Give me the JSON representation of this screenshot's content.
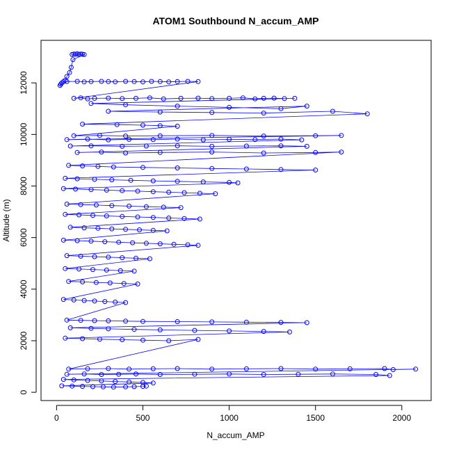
{
  "chart_data": {
    "type": "scatter",
    "title": "ATOM1 Southbound N_accum_AMP",
    "xlabel": "N_accum_AMP",
    "ylabel": "Altitude (m)",
    "xlim": [
      -90,
      2170
    ],
    "ylim": [
      -320,
      13650
    ],
    "x_ticks": [
      0,
      500,
      1000,
      1500,
      2000
    ],
    "y_ticks": [
      0,
      2000,
      4000,
      6000,
      8000,
      10000,
      12000
    ],
    "grid": false,
    "legend": "none",
    "marker": "open-circle",
    "connect_points": true,
    "series_color": "#0000ff",
    "series": [
      {
        "x": [
          90,
          100,
          110,
          120,
          130,
          140,
          150,
          160,
          95,
          85,
          75,
          60,
          50,
          40,
          30,
          25,
          20,
          60,
          120,
          160,
          200,
          260,
          300,
          340,
          400,
          450,
          500,
          550,
          600,
          650,
          700,
          760,
          820,
          100,
          140,
          180,
          220,
          300,
          380,
          460,
          540,
          620,
          720,
          820,
          900,
          1000,
          1080,
          1150,
          1200,
          1260,
          1320,
          1380,
          200,
          400,
          700,
          1000,
          1300,
          1450,
          300,
          600,
          900,
          1200,
          1600,
          1800,
          150,
          350,
          500,
          600,
          700,
          100,
          250,
          400,
          600,
          900,
          1200,
          1500,
          1650,
          60,
          180,
          300,
          420,
          560,
          700,
          850,
          1000,
          1150,
          1300,
          1420,
          80,
          200,
          380,
          520,
          700,
          900,
          1100,
          1300,
          1450,
          120,
          260,
          400,
          600,
          900,
          1200,
          1500,
          1650,
          70,
          150,
          240,
          330,
          500,
          700,
          900,
          1100,
          1300,
          1500,
          50,
          120,
          220,
          320,
          430,
          560,
          700,
          850,
          1000,
          1050,
          40,
          110,
          200,
          290,
          380,
          470,
          560,
          650,
          740,
          830,
          920,
          60,
          140,
          230,
          320,
          420,
          520,
          620,
          720,
          50,
          130,
          210,
          290,
          380,
          470,
          560,
          650,
          740,
          830,
          80,
          160,
          240,
          320,
          400,
          480,
          560,
          640,
          40,
          120,
          200,
          280,
          360,
          440,
          520,
          600,
          680,
          760,
          820,
          60,
          140,
          220,
          300,
          380,
          460,
          540,
          50,
          130,
          210,
          290,
          370,
          450,
          70,
          150,
          230,
          310,
          390,
          470,
          40,
          100,
          160,
          220,
          280,
          340,
          400,
          60,
          140,
          220,
          300,
          400,
          500,
          700,
          900,
          1100,
          1300,
          1450,
          80,
          200,
          300,
          450,
          600,
          800,
          1000,
          1200,
          1350,
          50,
          150,
          250,
          380,
          500,
          650,
          820,
          70,
          180,
          300,
          420,
          560,
          700,
          900,
          1100,
          1300,
          1500,
          1700,
          1900,
          1950,
          2080,
          60,
          160,
          260,
          360,
          460,
          600,
          800,
          1000,
          1200,
          1400,
          1600,
          1850,
          1930,
          40,
          100,
          180,
          260,
          340,
          420,
          500,
          560,
          30,
          90,
          150,
          210,
          270,
          330,
          400,
          450,
          500,
          520
        ],
        "y": [
          13100,
          13120,
          13110,
          13130,
          13100,
          13120,
          13110,
          13100,
          12900,
          12600,
          12400,
          12250,
          12100,
          12050,
          12000,
          11950,
          11900,
          12050,
          12060,
          12040,
          12050,
          12060,
          12050,
          12040,
          12060,
          12050,
          12040,
          12060,
          12050,
          12040,
          12050,
          12060,
          12050,
          11400,
          11420,
          11380,
          11400,
          11410,
          11390,
          11400,
          11420,
          11380,
          11400,
          11410,
          11390,
          11400,
          11420,
          11380,
          11400,
          11410,
          11390,
          11400,
          11200,
          11150,
          11100,
          11050,
          11000,
          11100,
          10900,
          10870,
          10850,
          10830,
          10900,
          10800,
          10400,
          10380,
          10360,
          10340,
          10320,
          9950,
          9960,
          9940,
          9950,
          9960,
          9940,
          9950,
          9960,
          9800,
          9820,
          9790,
          9810,
          9800,
          9820,
          9790,
          9810,
          9800,
          9820,
          9790,
          9550,
          9560,
          9540,
          9550,
          9560,
          9540,
          9550,
          9560,
          9540,
          9300,
          9320,
          9280,
          9300,
          9320,
          9280,
          9300,
          9320,
          8800,
          8780,
          8760,
          8740,
          8720,
          8700,
          8680,
          8660,
          8640,
          8620,
          8300,
          8280,
          8260,
          8240,
          8220,
          8200,
          8180,
          8160,
          8140,
          8120,
          7900,
          7880,
          7860,
          7840,
          7820,
          7800,
          7780,
          7760,
          7740,
          7720,
          7700,
          7300,
          7280,
          7260,
          7240,
          7220,
          7200,
          7180,
          7160,
          6900,
          6880,
          6860,
          6840,
          6820,
          6800,
          6780,
          6760,
          6740,
          6720,
          6400,
          6380,
          6360,
          6340,
          6320,
          6300,
          6280,
          6260,
          5900,
          5880,
          5860,
          5840,
          5820,
          5800,
          5780,
          5760,
          5740,
          5720,
          5700,
          5300,
          5280,
          5260,
          5240,
          5220,
          5200,
          5180,
          4800,
          4780,
          4760,
          4740,
          4720,
          4700,
          4300,
          4280,
          4260,
          4240,
          4220,
          4200,
          3600,
          3580,
          3560,
          3540,
          3520,
          3500,
          3480,
          2800,
          2790,
          2780,
          2770,
          2760,
          2750,
          2740,
          2730,
          2720,
          2710,
          2700,
          2500,
          2480,
          2460,
          2440,
          2420,
          2400,
          2380,
          2360,
          2340,
          2100,
          2080,
          2060,
          2040,
          2020,
          2000,
          2050,
          900,
          910,
          920,
          900,
          910,
          920,
          900,
          910,
          920,
          900,
          910,
          920,
          880,
          900,
          700,
          710,
          690,
          700,
          710,
          690,
          700,
          710,
          690,
          700,
          710,
          690,
          650,
          500,
          480,
          460,
          440,
          420,
          400,
          380,
          360,
          250,
          240,
          230,
          220,
          210,
          200,
          210,
          220,
          230,
          240
        ]
      }
    ]
  }
}
